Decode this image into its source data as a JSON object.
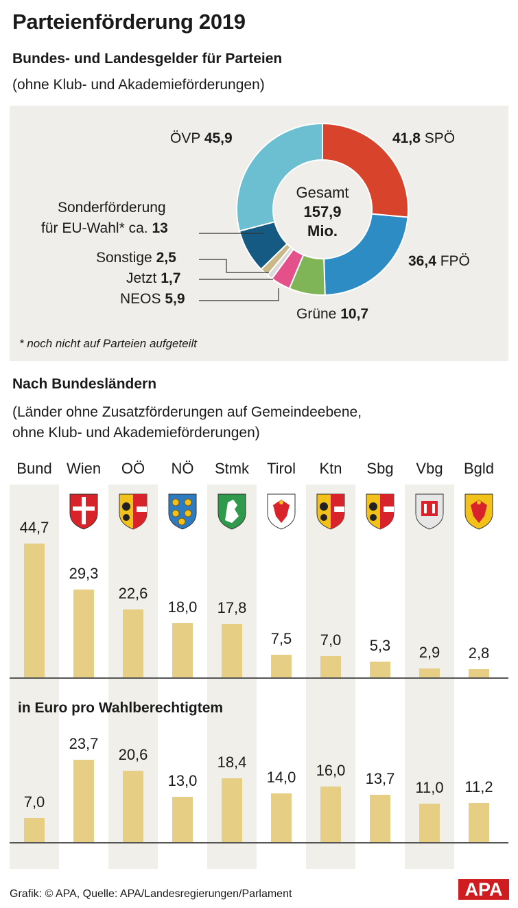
{
  "header": {
    "title": "Parteienförderung 2019",
    "subtitle": "Bundes- und Landesgelder für Parteien",
    "note": "(ohne Klub- und Akademieförderungen)"
  },
  "donut": {
    "center_line1": "Gesamt",
    "center_line2": "157,9",
    "center_line3": "Mio.",
    "footnote": "* noch nicht auf Parteien aufgeteilt",
    "labels": {
      "oevp_name": "ÖVP",
      "oevp_value": "45,9",
      "spoe_value": "41,8",
      "spoe_name": "SPÖ",
      "fpoe_value": "36,4",
      "fpoe_name": "FPÖ",
      "gruene_name": "Grüne",
      "gruene_value": "10,7",
      "sonder_line1": "Sonderförderung",
      "sonder_line2": "für EU-Wahl* ca.",
      "sonder_value": "13",
      "sonstige_name": "Sonstige",
      "sonstige_value": "2,5",
      "jetzt_name": "Jetzt",
      "jetzt_value": "1,7",
      "neos_name": "NEOS",
      "neos_value": "5,9"
    }
  },
  "section2": {
    "title": "Nach Bundesländern",
    "note_line1": "(Länder ohne Zusatzförderungen auf Gemeindeebene,",
    "note_line2": "ohne Klub- und Akademieförderungen)",
    "title2": "in Euro pro Wahlberechtigtem"
  },
  "credit": "Grafik: © APA, Quelle: APA/Landesregierungen/Parlament",
  "logo_text": "APA",
  "colors": {
    "oevp": "#6bbfd1",
    "spoe": "#d7432b",
    "fpoe": "#2e8cc5",
    "gruene": "#7fb557",
    "neos": "#e3508a",
    "jetzt": "#d9d9d9",
    "sonstige": "#c9b98a",
    "sonder": "#155a82",
    "bar": "#e6cf85",
    "column_bg": "#f0efe9",
    "apa_red": "#cf1c20"
  },
  "chart_data": [
    {
      "type": "pie",
      "title": "Bundes- und Landesgelder für Parteien",
      "unit": "Mio.",
      "total": 157.9,
      "slices": [
        {
          "name": "SPÖ",
          "value": 41.8
        },
        {
          "name": "FPÖ",
          "value": 36.4
        },
        {
          "name": "Grüne",
          "value": 10.7
        },
        {
          "name": "NEOS",
          "value": 5.9
        },
        {
          "name": "Jetzt",
          "value": 1.7
        },
        {
          "name": "Sonstige",
          "value": 2.5
        },
        {
          "name": "Sonderförderung für EU-Wahl*",
          "value": 13
        },
        {
          "name": "ÖVP",
          "value": 45.9
        }
      ]
    },
    {
      "type": "bar",
      "title": "Nach Bundesländern",
      "categories": [
        "Bund",
        "Wien",
        "OÖ",
        "NÖ",
        "Stmk",
        "Tirol",
        "Ktn",
        "Sbg",
        "Vbg",
        "Bgld"
      ],
      "values": [
        44.7,
        29.3,
        22.6,
        18.0,
        17.8,
        7.5,
        7.0,
        5.3,
        2.9,
        2.8
      ],
      "labels": [
        "44,7",
        "29,3",
        "22,6",
        "18,0",
        "17,8",
        "7,5",
        "7,0",
        "5,3",
        "2,9",
        "2,8"
      ],
      "ylim": [
        0,
        50
      ]
    },
    {
      "type": "bar",
      "title": "in Euro pro Wahlberechtigtem",
      "categories": [
        "Bund",
        "Wien",
        "OÖ",
        "NÖ",
        "Stmk",
        "Tirol",
        "Ktn",
        "Sbg",
        "Vbg",
        "Bgld"
      ],
      "values": [
        7.0,
        23.7,
        20.6,
        13.0,
        18.4,
        14.0,
        16.0,
        13.7,
        11.0,
        11.2
      ],
      "labels": [
        "7,0",
        "23,7",
        "20,6",
        "13,0",
        "18,4",
        "14,0",
        "16,0",
        "13,7",
        "11,0",
        "11,2"
      ],
      "ylim": [
        0,
        30
      ]
    }
  ]
}
